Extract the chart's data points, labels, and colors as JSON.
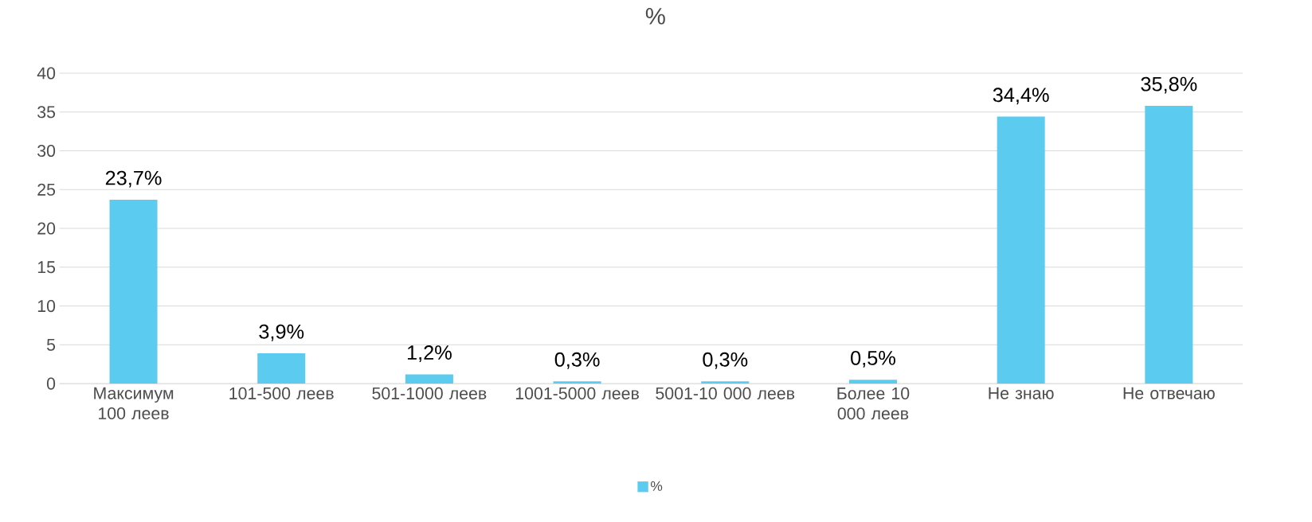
{
  "chart_data": {
    "type": "bar",
    "title": "%",
    "categories": [
      "Максимум 100 леев",
      "101-500 леев",
      "501-1000 леев",
      "1001-5000 леев",
      "5001-10 000 леев",
      "Более 10 000 леев",
      "Не знаю",
      "Не отвечаю"
    ],
    "series": [
      {
        "name": "%",
        "color": "#5bcbef",
        "values": [
          23.7,
          3.9,
          1.2,
          0.3,
          0.3,
          0.5,
          34.4,
          35.8
        ],
        "value_labels": [
          "23,7%",
          "3,9%",
          "1,2%",
          "0,3%",
          "0,3%",
          "0,5%",
          "34,4%",
          "35,8%"
        ]
      }
    ],
    "ylim": [
      0,
      40
    ],
    "yticks": [
      0,
      5,
      10,
      15,
      20,
      25,
      30,
      35,
      40
    ],
    "grid": "y",
    "legend": "bottom"
  }
}
